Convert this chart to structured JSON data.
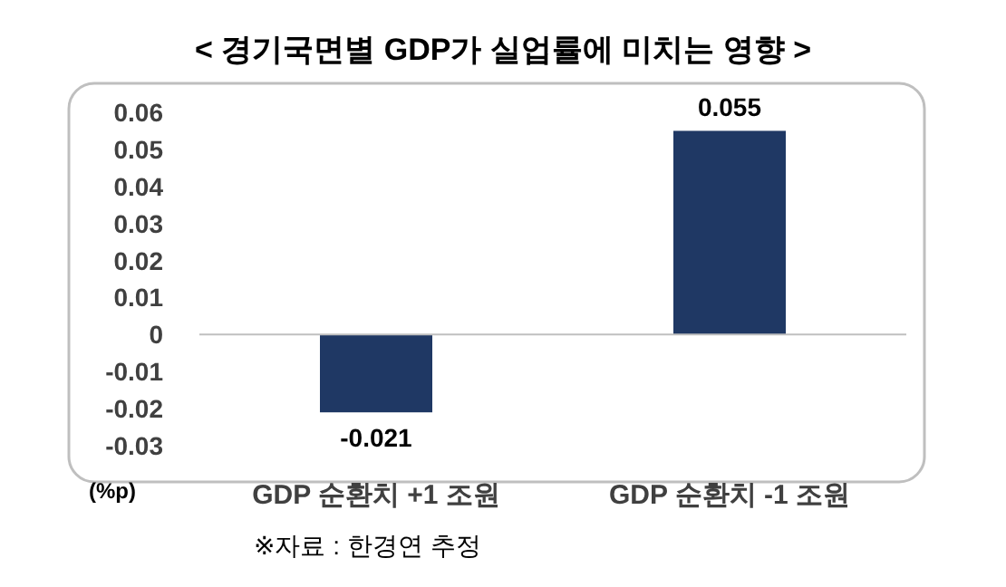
{
  "chart_data": {
    "type": "bar",
    "title": "< 경기국면별 GDP가 실업률에 미치는 영향 >",
    "ylabel": "(%p)",
    "annotations": [
      "※자료 : 한경연 추정"
    ],
    "categories": [
      "GDP 순환치 +1 조원",
      "GDP 순환치 -1 조원"
    ],
    "values": [
      -0.021,
      0.055
    ],
    "color": "#1f3864",
    "ylim": [
      -0.03,
      0.06
    ],
    "yticks": [
      -0.03,
      -0.02,
      -0.01,
      0,
      0.01,
      0.02,
      0.03,
      0.04,
      0.05,
      0.06
    ],
    "data_labels": true
  }
}
